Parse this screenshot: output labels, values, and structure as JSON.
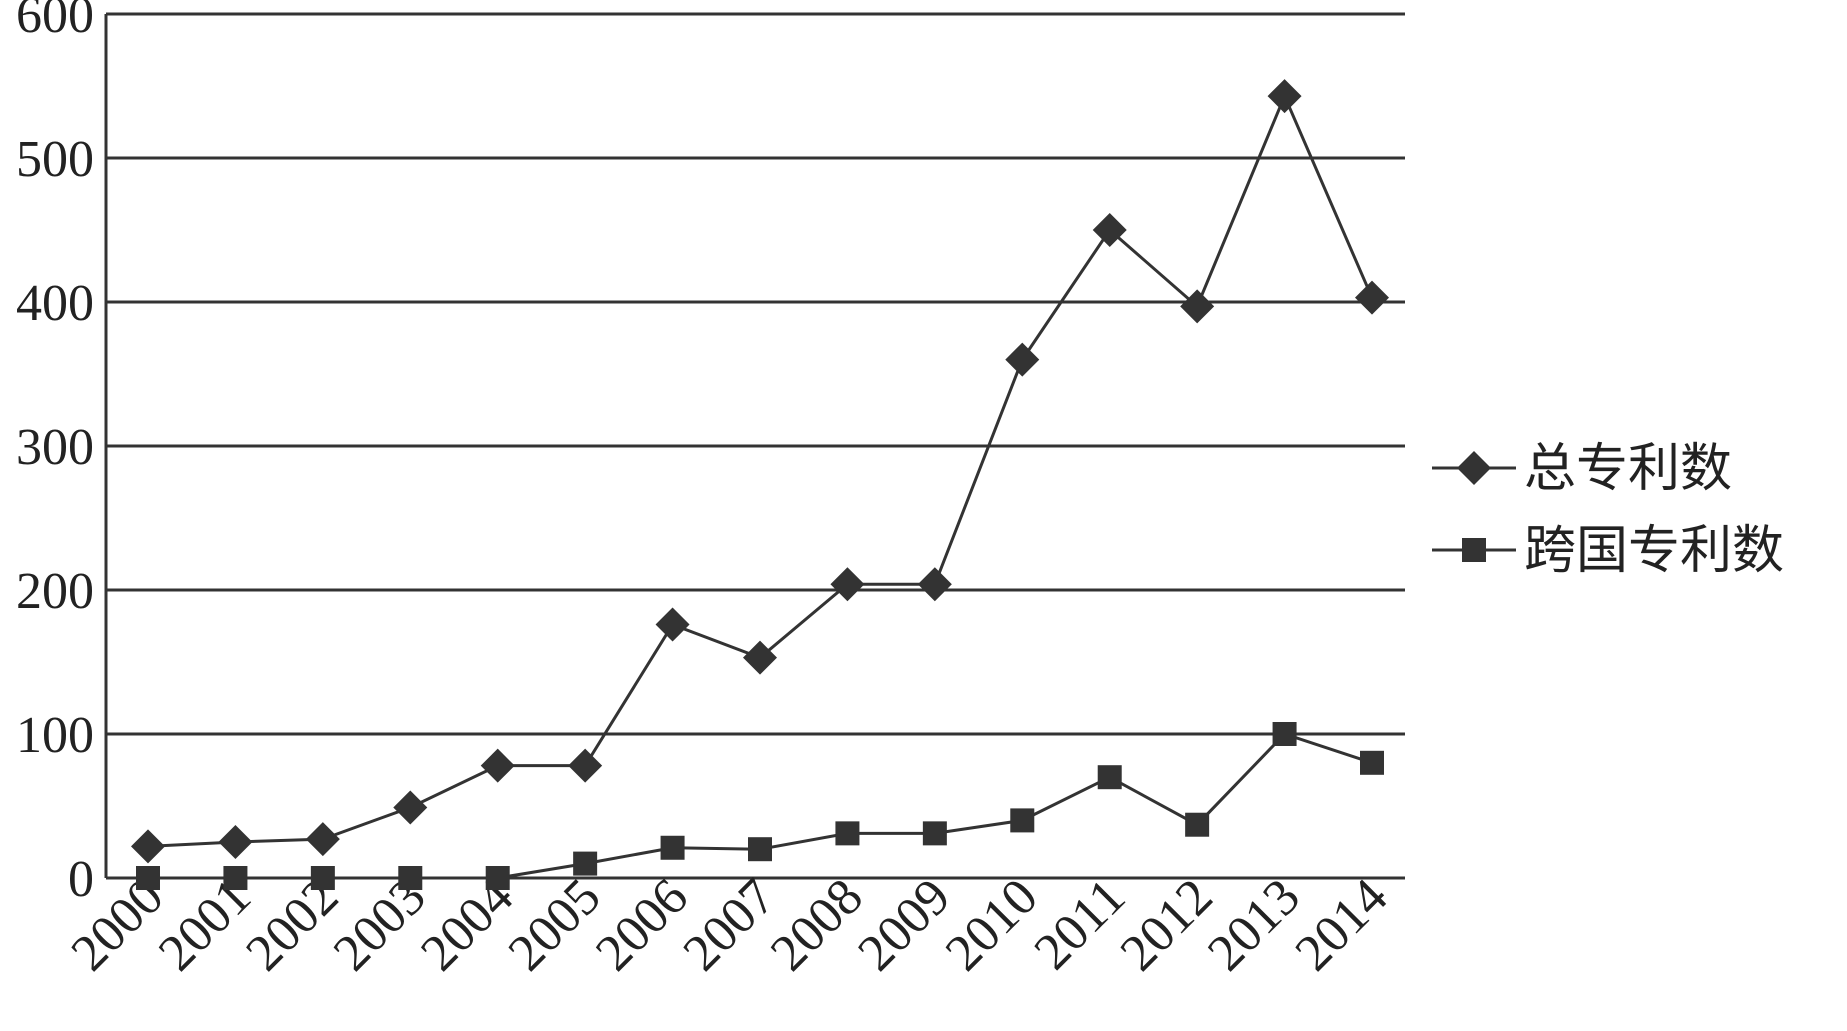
{
  "chart_data": {
    "type": "line",
    "categories": [
      "2000",
      "2001",
      "2002",
      "2003",
      "2004",
      "2005",
      "2006",
      "2007",
      "2008",
      "2009",
      "2010",
      "2011",
      "2012",
      "2013",
      "2014"
    ],
    "series": [
      {
        "name": "总专利数",
        "color": "#333333",
        "marker": "diamond",
        "values": [
          22,
          25,
          27,
          49,
          78,
          78,
          176,
          153,
          204,
          204,
          360,
          450,
          397,
          543,
          403
        ]
      },
      {
        "name": "跨国专利数",
        "color": "#333333",
        "marker": "square",
        "values": [
          0,
          0,
          0,
          0,
          0,
          10,
          21,
          20,
          31,
          31,
          40,
          70,
          37,
          100,
          80
        ]
      }
    ],
    "ylim": [
      0,
      600
    ],
    "yticks": [
      0,
      100,
      200,
      300,
      400,
      500,
      600
    ],
    "grid": true,
    "legend": "right"
  }
}
